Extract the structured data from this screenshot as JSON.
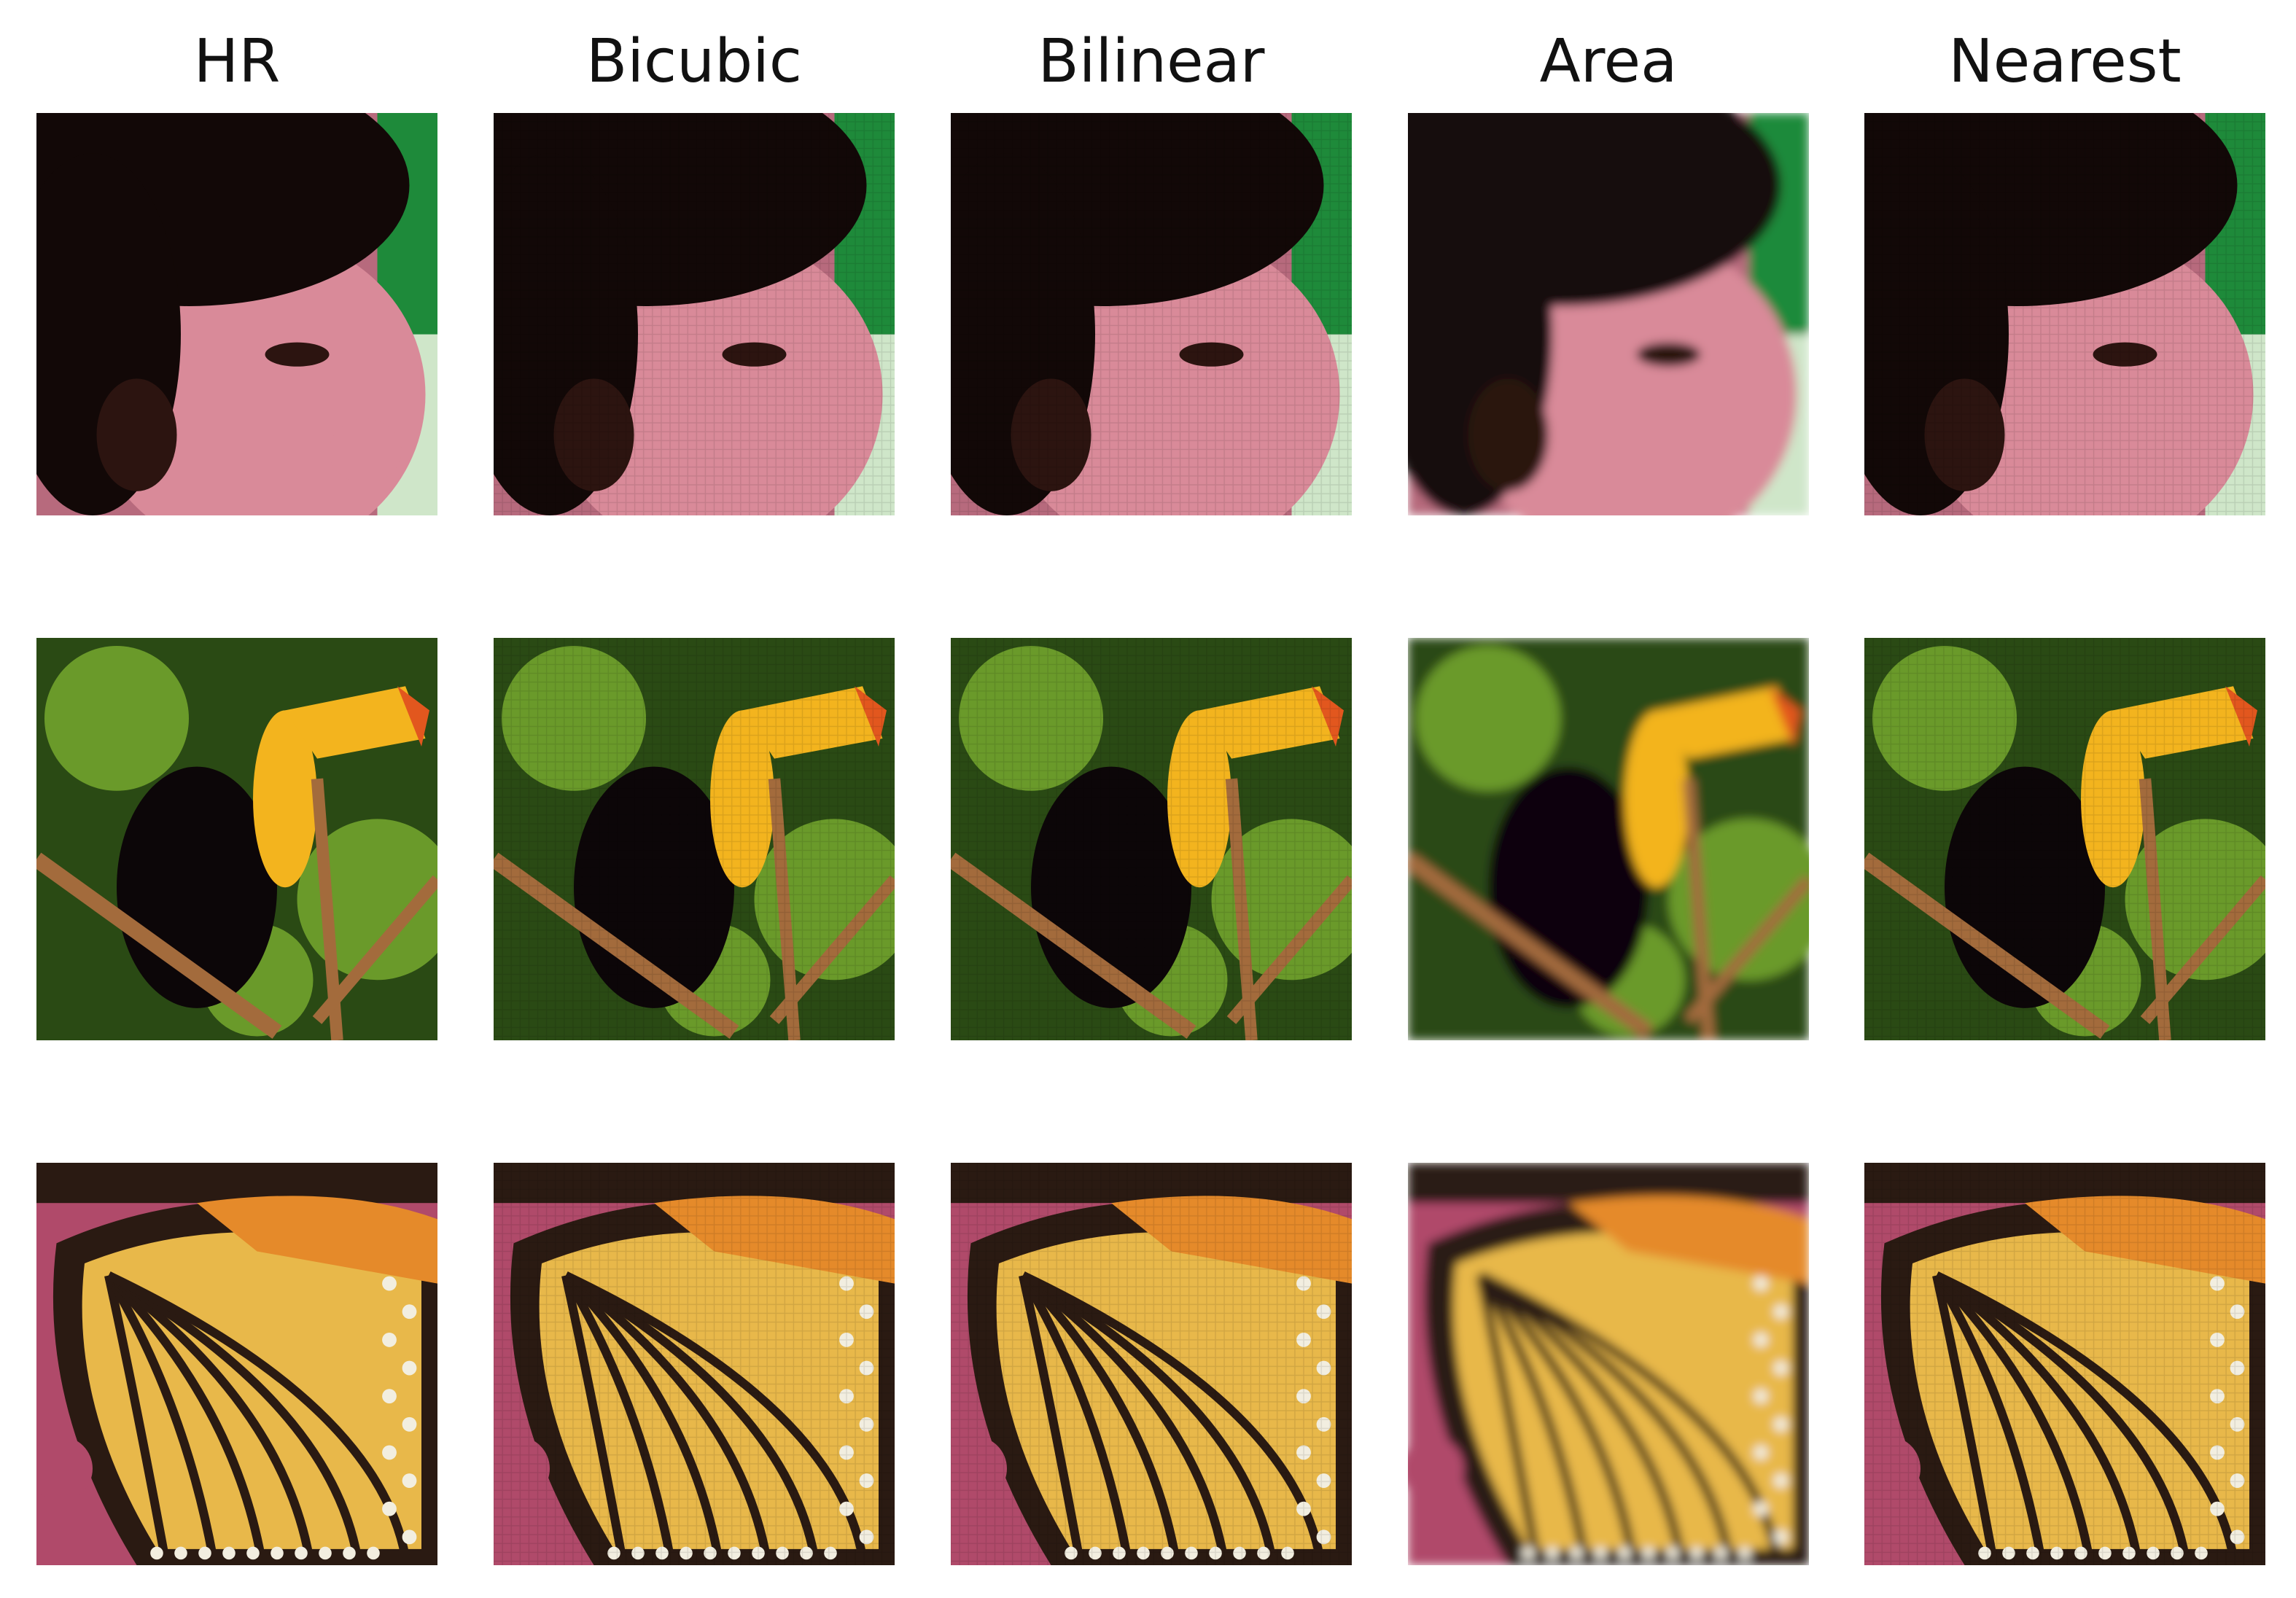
{
  "figure": {
    "columns": [
      {
        "title": "HR",
        "kind": "high-resolution"
      },
      {
        "title": "Bicubic",
        "kind": "pixelated"
      },
      {
        "title": "Bilinear",
        "kind": "pixelated"
      },
      {
        "title": "Area",
        "kind": "smoothed"
      },
      {
        "title": "Nearest",
        "kind": "pixelated"
      }
    ],
    "rows": [
      {
        "subject": "child-face",
        "palette": [
          "#120807",
          "#2c1410",
          "#b76a7d",
          "#d98a99",
          "#1e8a3a",
          "#cfe6c9"
        ]
      },
      {
        "subject": "toucan",
        "palette": [
          "#2a4a14",
          "#6a9a2a",
          "#0c0608",
          "#f3b41e",
          "#e2571e",
          "#a36b3c"
        ]
      },
      {
        "subject": "butterfly-wing",
        "palette": [
          "#2a1a12",
          "#e8b84a",
          "#f0d070",
          "#e58a2a",
          "#f2eee0",
          "#b04a6a"
        ]
      }
    ]
  }
}
